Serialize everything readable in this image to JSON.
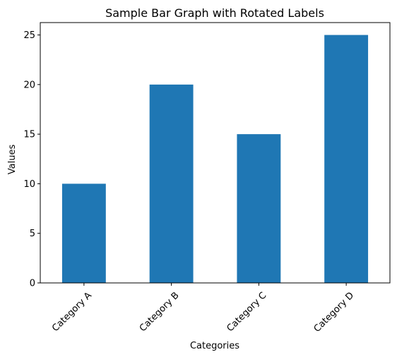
{
  "chart_data": {
    "type": "bar",
    "title": "Sample Bar Graph with Rotated Labels",
    "xlabel": "Categories",
    "ylabel": "Values",
    "categories": [
      "Category A",
      "Category B",
      "Category C",
      "Category D"
    ],
    "values": [
      10,
      20,
      15,
      25
    ],
    "ylim": [
      0,
      26.25
    ],
    "yticks": [
      0,
      5,
      10,
      15,
      20,
      25
    ],
    "x_tick_rotation_deg": 45,
    "bar_color": "#1f77b4",
    "grid": false,
    "legend": "none"
  }
}
